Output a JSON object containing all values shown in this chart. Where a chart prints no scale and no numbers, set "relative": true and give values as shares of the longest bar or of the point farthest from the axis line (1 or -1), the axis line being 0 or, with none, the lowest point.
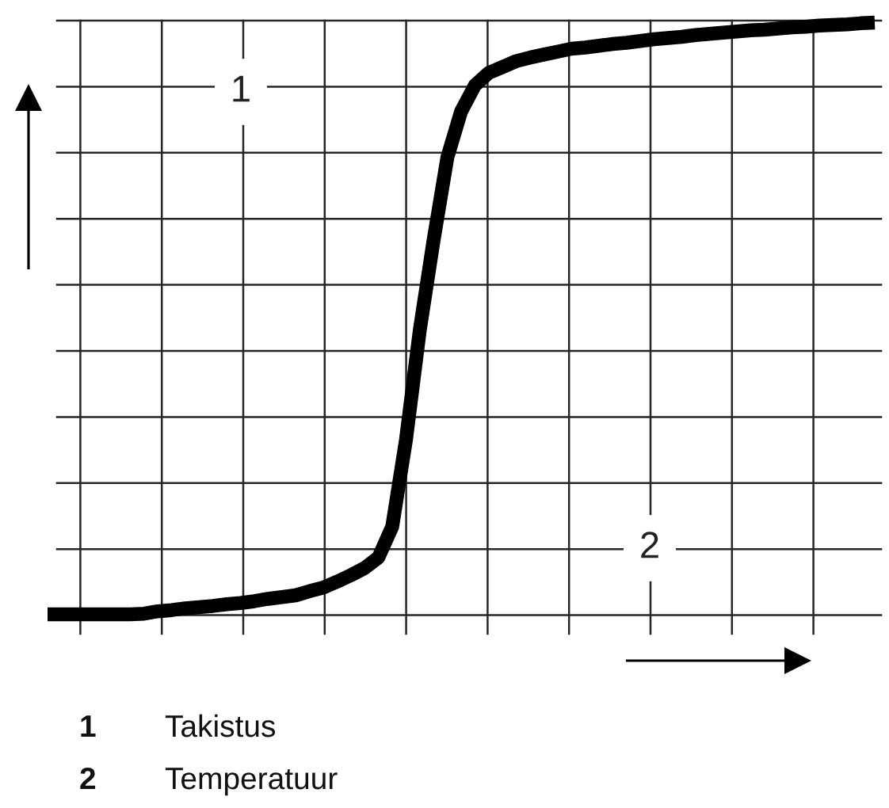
{
  "chart_data": {
    "type": "line",
    "relative": true,
    "xlabel": "2",
    "ylabel": "1",
    "grid": true,
    "line_style": "solid",
    "categories": [
      null,
      null,
      null,
      null,
      null,
      null,
      null,
      null,
      null,
      null,
      null,
      null,
      null,
      null,
      null,
      null,
      null,
      null,
      null,
      null,
      null,
      null,
      null,
      null,
      null,
      null,
      null,
      null,
      null,
      null,
      null,
      null,
      null,
      null,
      null,
      null,
      null,
      null,
      null,
      null,
      null,
      null,
      null,
      null,
      null,
      null,
      null,
      null,
      null,
      null,
      null,
      null,
      null,
      null,
      null,
      null,
      null,
      null,
      null,
      null,
      null
    ],
    "series": [
      {
        "color": "#000000",
        "values": [
          0,
          0,
          0,
          0,
          0,
          0,
          0,
          0.001,
          0.005,
          0.007,
          0.01,
          0.012,
          0.014,
          0.017,
          0.019,
          0.022,
          0.026,
          0.029,
          0.032,
          0.039,
          0.045,
          0.055,
          0.066,
          0.078,
          0.096,
          0.148,
          0.295,
          0.48,
          0.632,
          0.772,
          0.85,
          0.894,
          0.915,
          0.925,
          0.935,
          0.941,
          0.946,
          0.951,
          0.956,
          0.958,
          0.961,
          0.964,
          0.966,
          0.969,
          0.972,
          0.974,
          0.976,
          0.979,
          0.981,
          0.983,
          0.985,
          0.987,
          0.988,
          0.99,
          0.992,
          0.993,
          0.995,
          0.996,
          0.997,
          0.999,
          1
        ]
      }
    ],
    "annotations": [
      "1",
      "Takistus",
      "2",
      "Temperatuur"
    ]
  }
}
